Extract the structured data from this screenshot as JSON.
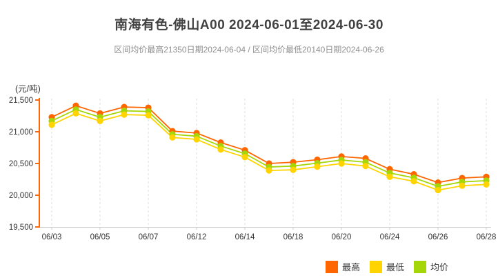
{
  "title": "南海有色-佛山A00 2024-06-01至2024-06-30",
  "subtitle": "区间均价最高21350日期2024-06-04 / 区间均价最低20140日期2024-06-26",
  "legend": [
    {
      "label": "最高",
      "color": "#ff6600"
    },
    {
      "label": "最低",
      "color": "#ffd400"
    },
    {
      "label": "均价",
      "color": "#a5d608"
    }
  ],
  "colors": {
    "title": "#414141",
    "subtitle": "#8f8f8f",
    "y_axis": "#ff6600",
    "x_axis": "#cccccc",
    "gridline": "#dddddd",
    "tick_label": "#333333",
    "series_high": "#ff6600",
    "series_low": "#ffd400",
    "series_avg": "#a5d608"
  },
  "chart_data": {
    "type": "line",
    "title": "南海有色-佛山A00 2024-06-01至2024-06-30",
    "subtitle": "区间均价最高21350日期2024-06-04 / 区间均价最低20140日期2024-06-26",
    "ylabel": "(元/吨)",
    "xlabel": "",
    "ylim": [
      19500,
      21500
    ],
    "y_ticks": [
      "21,500",
      "21,000",
      "20,500",
      "20,000",
      "19,500"
    ],
    "y_tick_values": [
      21500,
      21000,
      20500,
      20000,
      19500
    ],
    "x": [
      "06/03",
      "06/04",
      "06/05",
      "06/06",
      "06/07",
      "06/11",
      "06/12",
      "06/13",
      "06/14",
      "06/17",
      "06/18",
      "06/19",
      "06/20",
      "06/21",
      "06/24",
      "06/25",
      "06/26",
      "06/27",
      "06/28"
    ],
    "x_tick_labels": [
      "06/03",
      "06/05",
      "06/07",
      "06/12",
      "06/14",
      "06/18",
      "06/20",
      "06/24",
      "06/26",
      "06/28"
    ],
    "grid": "vertical-dashed",
    "legend_position": "bottom-right",
    "series": [
      {
        "name": "最高",
        "color": "#ff6600",
        "values": [
          21230,
          21410,
          21290,
          21390,
          21380,
          21010,
          20980,
          20830,
          20710,
          20500,
          20520,
          20560,
          20610,
          20580,
          20410,
          20330,
          20200,
          20270,
          20290
        ]
      },
      {
        "name": "最低",
        "color": "#ffd400",
        "values": [
          21110,
          21290,
          21170,
          21270,
          21260,
          20910,
          20880,
          20720,
          20600,
          20390,
          20400,
          20450,
          20500,
          20460,
          20290,
          20220,
          20080,
          20150,
          20170
        ]
      },
      {
        "name": "均价",
        "color": "#a5d608",
        "values": [
          21170,
          21350,
          21230,
          21330,
          21320,
          20960,
          20930,
          20775,
          20655,
          20445,
          20460,
          20505,
          20555,
          20520,
          20350,
          20275,
          20140,
          20210,
          20230
        ]
      }
    ]
  }
}
